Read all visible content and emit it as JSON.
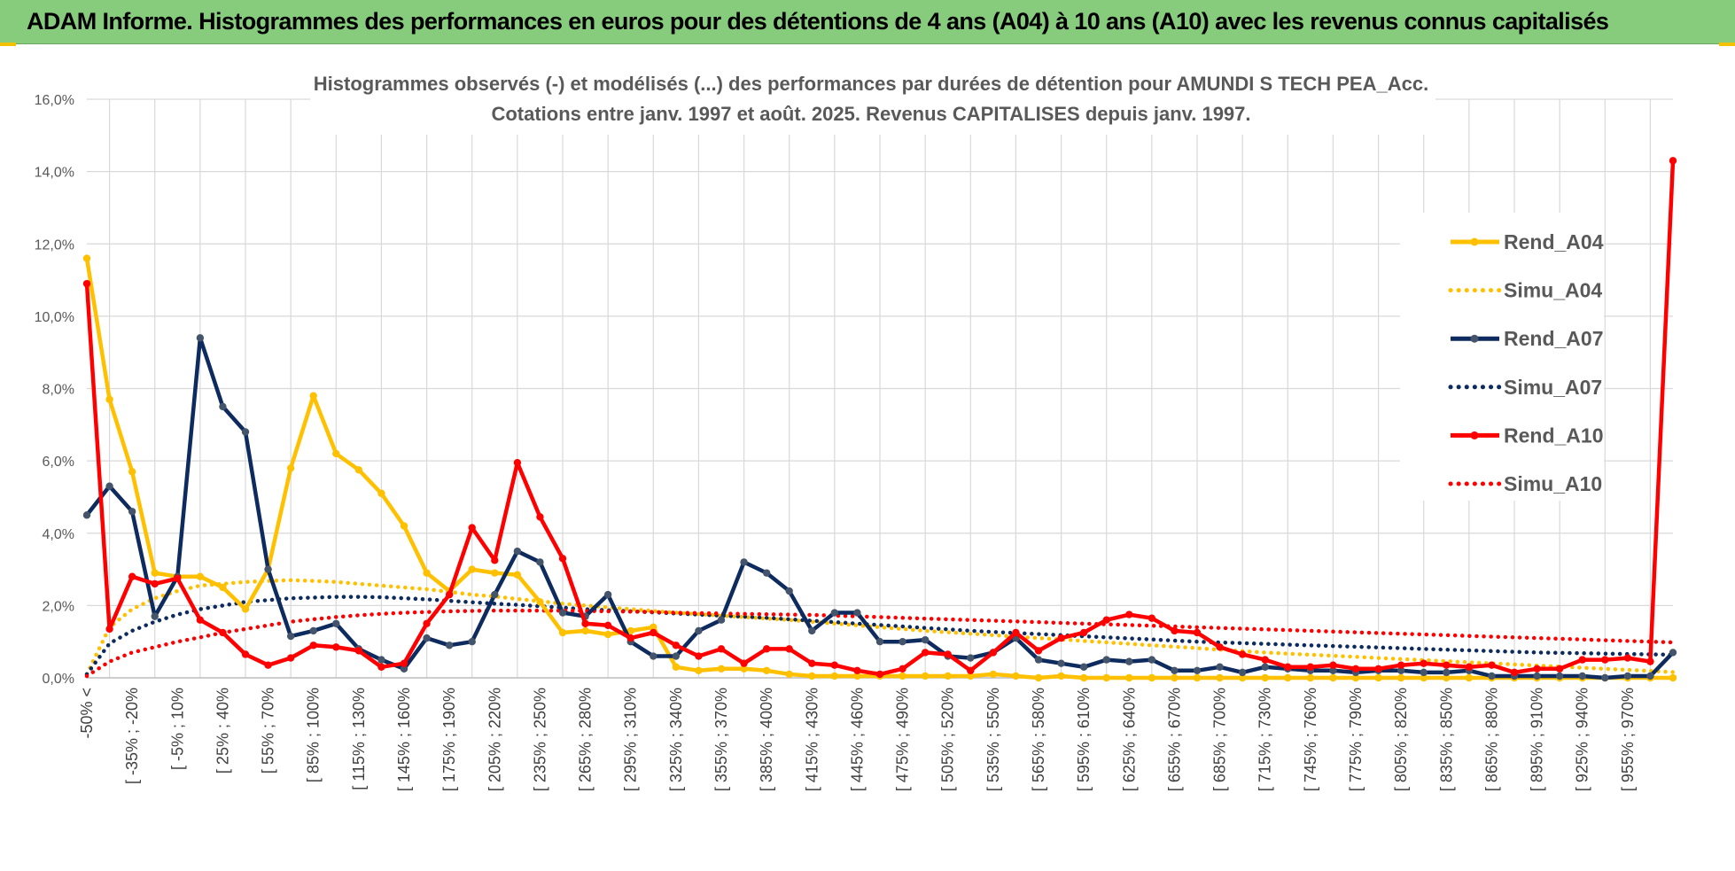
{
  "header": {
    "title": "ADAM Informe. Histogrammes des performances en euros pour des détentions de 4 ans (A04) à 10 ans (A10) avec les revenus connus capitalisés"
  },
  "colors": {
    "banner": "#86cc7c",
    "A04": "#ffc000",
    "A07": "#0d2b5e",
    "A10": "#ff0000",
    "grid": "#d9d9d9"
  },
  "chart_data": {
    "type": "line",
    "title_line1": "Histogrammes observés (-) et modélisés (...) des performances par durées de détention pour AMUNDI S TECH PEA_Acc.",
    "title_line2": "Cotations entre janv. 1997 et août. 2025. Revenus CAPITALISES depuis janv. 1997.",
    "ylim": [
      0,
      16
    ],
    "yticks": [
      "0,0%",
      "2,0%",
      "4,0%",
      "6,0%",
      "8,0%",
      "10,0%",
      "12,0%",
      "14,0%",
      "16,0%"
    ],
    "grid": true,
    "legend_position": "top-right",
    "xtick_labels": [
      "-50% <",
      "[ -35% ; -20%",
      "[ -5% ; 10%",
      "[ 25% ; 40%",
      "[ 55% ; 70%",
      "[ 85% ; 100%",
      "[ 115% ; 130%",
      "[ 145% ; 160%",
      "[ 175% ; 190%",
      "[ 205% ; 220%",
      "[ 235% ; 250%",
      "[ 265% ; 280%",
      "[ 295% ; 310%",
      "[ 325% ; 340%",
      "[ 355% ; 370%",
      "[ 385% ; 400%",
      "[ 415% ; 430%",
      "[ 445% ; 460%",
      "[ 475% ; 490%",
      "[ 505% ; 520%",
      "[ 535% ; 550%",
      "[ 565% ; 580%",
      "[ 595% ; 610%",
      "[ 625% ; 640%",
      "[ 655% ; 670%",
      "[ 685% ; 700%",
      "[ 715% ; 730%",
      "[ 745% ; 760%",
      "[ 775% ; 790%",
      "[ 805% ; 820%",
      "[ 835% ; 850%",
      "[ 865% ; 880%",
      "[ 895% ; 910%",
      "[ 925% ; 940%",
      "[ 955% ; 970%"
    ],
    "series": [
      {
        "name": "Rend_A04",
        "style": "solid",
        "color": "#ffc000",
        "values": [
          11.6,
          7.7,
          5.7,
          2.9,
          2.8,
          2.8,
          2.5,
          1.9,
          3.0,
          5.8,
          7.8,
          6.2,
          5.75,
          5.1,
          4.2,
          2.9,
          2.4,
          3.0,
          2.9,
          2.85,
          2.1,
          1.25,
          1.3,
          1.2,
          1.3,
          1.4,
          0.3,
          0.2,
          0.25,
          0.25,
          0.2,
          0.1,
          0.05,
          0.05,
          0.05,
          0.05,
          0.05,
          0.05,
          0.05,
          0.05,
          0.1,
          0.05,
          0.0,
          0.05,
          0.0,
          0.0,
          0.0,
          0.0,
          0.0,
          0.0,
          0.0,
          0.0,
          0.0,
          0.0,
          0.0,
          0.0,
          0.0,
          0.0,
          0.0,
          0.0,
          0.0,
          0.0,
          0.0,
          0.0,
          0.0,
          0.0,
          0.0,
          0.0,
          0.0,
          0.0,
          0.0
        ]
      },
      {
        "name": "Simu_A04",
        "style": "dotted",
        "color": "#ffc000",
        "values": [
          0.1,
          1.4,
          1.9,
          2.2,
          2.4,
          2.55,
          2.6,
          2.65,
          2.68,
          2.7,
          2.68,
          2.65,
          2.6,
          2.55,
          2.5,
          2.45,
          2.38,
          2.3,
          2.25,
          2.18,
          2.12,
          2.05,
          2.0,
          1.95,
          1.9,
          1.85,
          1.8,
          1.76,
          1.72,
          1.68,
          1.64,
          1.6,
          1.55,
          1.5,
          1.45,
          1.4,
          1.35,
          1.3,
          1.26,
          1.22,
          1.18,
          1.14,
          1.1,
          1.06,
          1.02,
          0.98,
          0.94,
          0.9,
          0.86,
          0.82,
          0.78,
          0.74,
          0.7,
          0.67,
          0.64,
          0.61,
          0.58,
          0.55,
          0.52,
          0.49,
          0.46,
          0.43,
          0.4,
          0.37,
          0.34,
          0.31,
          0.28,
          0.25,
          0.22,
          0.19,
          0.16
        ]
      },
      {
        "name": "Rend_A07",
        "style": "solid",
        "color": "#0d2b5e",
        "values": [
          4.5,
          5.3,
          4.6,
          1.7,
          2.8,
          9.4,
          7.5,
          6.8,
          3.0,
          1.15,
          1.3,
          1.5,
          0.8,
          0.5,
          0.25,
          1.1,
          0.9,
          1.0,
          2.3,
          3.5,
          3.2,
          1.8,
          1.7,
          2.3,
          1.0,
          0.6,
          0.6,
          1.3,
          1.6,
          3.2,
          2.9,
          2.4,
          1.3,
          1.8,
          1.8,
          1.0,
          1.0,
          1.05,
          0.6,
          0.55,
          0.7,
          1.1,
          0.5,
          0.4,
          0.3,
          0.5,
          0.45,
          0.5,
          0.2,
          0.2,
          0.3,
          0.15,
          0.3,
          0.25,
          0.2,
          0.2,
          0.15,
          0.2,
          0.2,
          0.15,
          0.15,
          0.2,
          0.05,
          0.05,
          0.05,
          0.05,
          0.05,
          0.0,
          0.05,
          0.05,
          0.7
        ]
      },
      {
        "name": "Simu_A07",
        "style": "dotted",
        "color": "#0d2b5e",
        "values": [
          0.1,
          0.95,
          1.3,
          1.55,
          1.75,
          1.9,
          2.0,
          2.1,
          2.15,
          2.2,
          2.22,
          2.24,
          2.24,
          2.23,
          2.2,
          2.17,
          2.13,
          2.09,
          2.05,
          2.02,
          1.98,
          1.94,
          1.9,
          1.87,
          1.84,
          1.81,
          1.78,
          1.75,
          1.72,
          1.69,
          1.66,
          1.62,
          1.58,
          1.54,
          1.5,
          1.46,
          1.42,
          1.38,
          1.34,
          1.3,
          1.27,
          1.24,
          1.21,
          1.18,
          1.15,
          1.12,
          1.09,
          1.06,
          1.03,
          1.0,
          0.98,
          0.96,
          0.94,
          0.92,
          0.9,
          0.88,
          0.86,
          0.84,
          0.82,
          0.8,
          0.78,
          0.76,
          0.74,
          0.72,
          0.7,
          0.69,
          0.68,
          0.67,
          0.66,
          0.65,
          0.64
        ]
      },
      {
        "name": "Rend_A10",
        "style": "solid",
        "color": "#ff0000",
        "values": [
          10.9,
          1.35,
          2.8,
          2.6,
          2.75,
          1.6,
          1.25,
          0.65,
          0.35,
          0.55,
          0.9,
          0.85,
          0.75,
          0.3,
          0.4,
          1.5,
          2.3,
          4.15,
          3.25,
          5.95,
          4.45,
          3.3,
          1.5,
          1.45,
          1.1,
          1.25,
          0.9,
          0.6,
          0.8,
          0.4,
          0.8,
          0.8,
          0.4,
          0.35,
          0.2,
          0.1,
          0.25,
          0.7,
          0.65,
          0.2,
          0.7,
          1.25,
          0.75,
          1.1,
          1.25,
          1.6,
          1.75,
          1.65,
          1.3,
          1.25,
          0.85,
          0.65,
          0.5,
          0.3,
          0.3,
          0.35,
          0.25,
          0.25,
          0.35,
          0.4,
          0.35,
          0.3,
          0.35,
          0.15,
          0.25,
          0.25,
          0.5,
          0.5,
          0.55,
          0.45,
          14.3
        ]
      },
      {
        "name": "Simu_A10",
        "style": "dotted",
        "color": "#ff0000",
        "values": [
          0.05,
          0.45,
          0.7,
          0.85,
          1.0,
          1.12,
          1.25,
          1.35,
          1.45,
          1.55,
          1.62,
          1.68,
          1.73,
          1.77,
          1.8,
          1.82,
          1.84,
          1.85,
          1.86,
          1.86,
          1.86,
          1.86,
          1.85,
          1.84,
          1.83,
          1.82,
          1.8,
          1.79,
          1.78,
          1.77,
          1.76,
          1.75,
          1.74,
          1.72,
          1.7,
          1.68,
          1.66,
          1.64,
          1.62,
          1.6,
          1.58,
          1.56,
          1.54,
          1.52,
          1.5,
          1.48,
          1.46,
          1.44,
          1.42,
          1.4,
          1.38,
          1.36,
          1.34,
          1.32,
          1.3,
          1.28,
          1.26,
          1.24,
          1.22,
          1.2,
          1.18,
          1.16,
          1.14,
          1.12,
          1.1,
          1.08,
          1.06,
          1.04,
          1.02,
          1.0,
          0.98
        ]
      }
    ]
  }
}
